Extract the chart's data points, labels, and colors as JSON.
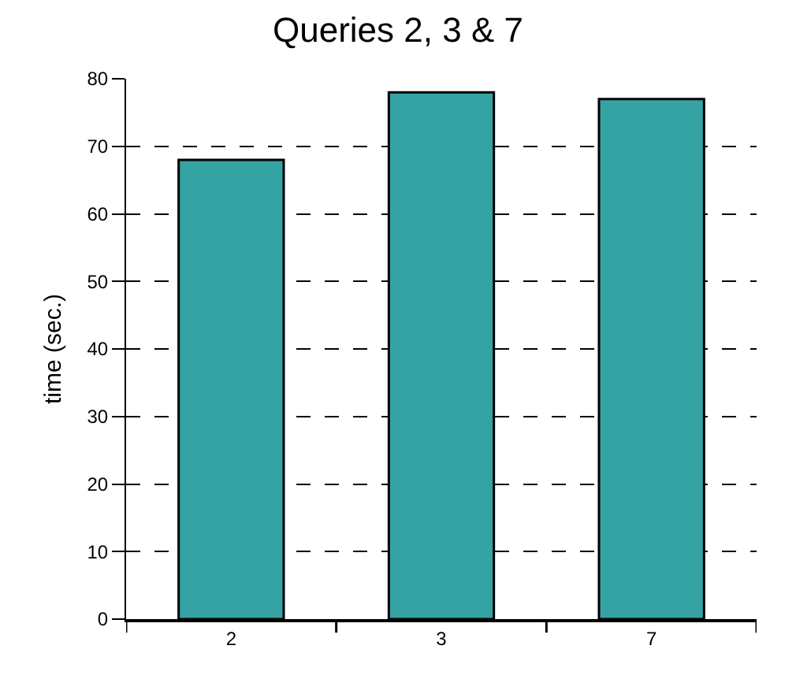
{
  "chart_data": {
    "type": "bar",
    "title": "Queries 2, 3 & 7",
    "ylabel": "time (sec.)",
    "categories": [
      "2",
      "3",
      "7"
    ],
    "values": [
      68,
      78,
      77
    ],
    "color": "#35a3a3",
    "ylim": [
      0,
      80
    ],
    "yticks": [
      0,
      10,
      20,
      30,
      40,
      50,
      60,
      70,
      80
    ],
    "grid": "y"
  }
}
